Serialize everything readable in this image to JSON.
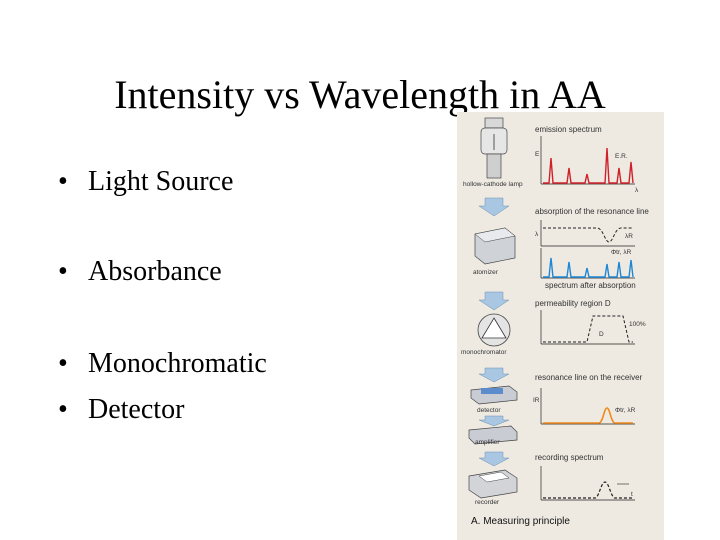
{
  "slide": {
    "title": "Intensity vs Wavelength in AA",
    "bullet_symbol": "•",
    "bullets": [
      "Light Source",
      "Absorbance",
      "Monochromatic",
      "Detector"
    ]
  },
  "figure": {
    "caption": "A. Measuring principle",
    "components": [
      "hollow-cathode lamp",
      "atomizer",
      "monochromator",
      "detector",
      "amplifier",
      "recorder"
    ],
    "panels": [
      {
        "title": "emission spectrum",
        "labels": [
          "E.R."
        ]
      },
      {
        "title": "absorption of the resonance line",
        "labels": [
          "λ",
          "λR"
        ]
      },
      {
        "title": "spectrum after absorption",
        "labels": [
          "λR",
          "Φtr, λR"
        ]
      },
      {
        "title": "permeability region D",
        "labels": [
          "100%",
          "D"
        ]
      },
      {
        "title": "resonance line on the receiver",
        "labels": [
          "Φtr, λR"
        ]
      },
      {
        "title": "recording spectrum",
        "labels": [
          "t"
        ]
      }
    ],
    "axis_labels": [
      "λ",
      "E",
      "IR"
    ],
    "colors": {
      "emission": "#d0202a",
      "absorption": "#1e88d6",
      "detector": "#f08a1c",
      "neutral": "#222222"
    }
  }
}
